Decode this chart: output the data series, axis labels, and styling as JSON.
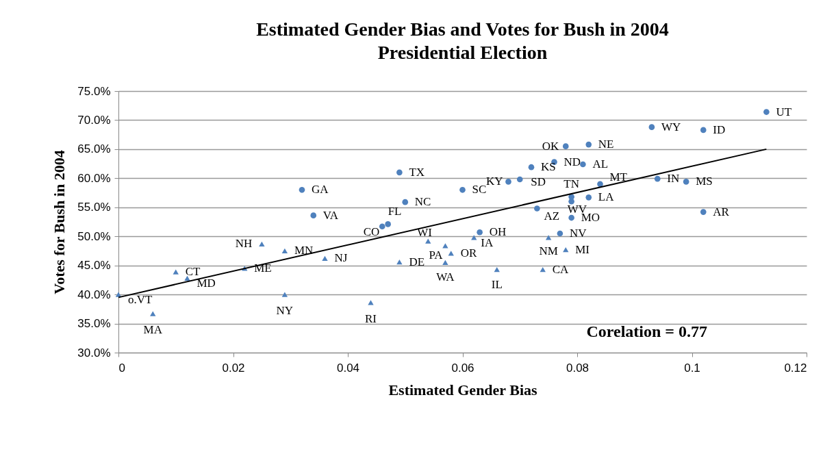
{
  "chart_data": {
    "type": "scatter",
    "title": "Estimated Gender Bias and Votes for Bush in 2004 Presidential Election",
    "xlabel": "Estimated Gender Bias",
    "ylabel": "Votes for Bush in 2004",
    "xlim": [
      0,
      0.12
    ],
    "xticks": [
      0,
      0.02,
      0.04,
      0.06,
      0.08,
      0.1,
      0.12
    ],
    "ylim": [
      30,
      75
    ],
    "yticks": [
      {
        "value": 30,
        "label": "30.0%"
      },
      {
        "value": 35,
        "label": "35.0%"
      },
      {
        "value": 40,
        "label": "40.0%"
      },
      {
        "value": 45,
        "label": "45.0%"
      },
      {
        "value": 50,
        "label": "50.0%"
      },
      {
        "value": 55,
        "label": "55.0%"
      },
      {
        "value": 60,
        "label": "60.0%"
      },
      {
        "value": 65,
        "label": "65.0%"
      },
      {
        "value": 70,
        "label": "70.0%"
      },
      {
        "value": 75,
        "label": "75.0%"
      }
    ],
    "grid": "y",
    "series": [
      {
        "type": "scatter",
        "marker": "circle",
        "color": "#4f81bd",
        "x": [
          0.113,
          0.093,
          0.102,
          0.082,
          0.094,
          0.099,
          0.102,
          0.084,
          0.082,
          0.078,
          0.076,
          0.081,
          0.072,
          0.068,
          0.07,
          0.049,
          0.06,
          0.05,
          0.079,
          0.079,
          0.073,
          0.079,
          0.047,
          0.046,
          0.063,
          0.077,
          0.032,
          0.034
        ],
        "values": [
          71.4,
          68.8,
          68.3,
          65.8,
          59.9,
          59.4,
          54.2,
          59.0,
          56.7,
          65.5,
          62.8,
          62.4,
          61.9,
          59.4,
          59.8,
          61.0,
          58.0,
          55.9,
          56.8,
          56.0,
          54.8,
          53.2,
          52.1,
          51.7,
          50.7,
          50.5,
          58.0,
          53.6
        ]
      },
      {
        "type": "scatter",
        "marker": "triangle",
        "color": "#4f81bd",
        "x": [
          0.0,
          0.006,
          0.01,
          0.012,
          0.022,
          0.025,
          0.029,
          0.036,
          0.029,
          0.044,
          0.054,
          0.057,
          0.058,
          0.049,
          0.057,
          0.062,
          0.066,
          0.074,
          0.075,
          0.078
        ],
        "values": [
          40.0,
          36.7,
          43.9,
          42.8,
          44.5,
          48.7,
          47.5,
          46.2,
          40.0,
          38.6,
          49.2,
          48.4,
          47.1,
          45.6,
          45.5,
          49.8,
          44.3,
          44.3,
          49.8,
          47.7
        ]
      },
      {
        "type": "line",
        "line_style": "solid",
        "marker": "none",
        "color": "#000000",
        "x": [
          0,
          0.113
        ],
        "values": [
          39.5,
          65.0
        ]
      }
    ],
    "annotations": [
      {
        "text": "UT",
        "x": 0.113,
        "y": 71.4
      },
      {
        "text": "WY",
        "x": 0.093,
        "y": 68.8
      },
      {
        "text": "ID",
        "x": 0.102,
        "y": 68.3
      },
      {
        "text": "NE",
        "x": 0.082,
        "y": 65.8
      },
      {
        "text": "IN",
        "x": 0.094,
        "y": 59.9
      },
      {
        "text": "MS",
        "x": 0.099,
        "y": 59.4
      },
      {
        "text": "AR",
        "x": 0.102,
        "y": 54.2
      },
      {
        "text": "MT",
        "x": 0.084,
        "y": 59.0
      },
      {
        "text": "LA",
        "x": 0.082,
        "y": 56.7
      },
      {
        "text": "OK",
        "x": 0.078,
        "y": 65.5
      },
      {
        "text": "ND",
        "x": 0.076,
        "y": 62.8
      },
      {
        "text": "AL",
        "x": 0.081,
        "y": 62.4
      },
      {
        "text": "KS",
        "x": 0.072,
        "y": 61.9
      },
      {
        "text": "KY",
        "x": 0.068,
        "y": 59.4
      },
      {
        "text": "SD",
        "x": 0.07,
        "y": 59.8
      },
      {
        "text": "TX",
        "x": 0.049,
        "y": 61.0
      },
      {
        "text": "SC",
        "x": 0.06,
        "y": 58.0
      },
      {
        "text": "NC",
        "x": 0.05,
        "y": 55.9
      },
      {
        "text": "TN",
        "x": 0.079,
        "y": 56.8
      },
      {
        "text": "WV",
        "x": 0.079,
        "y": 56.0
      },
      {
        "text": "AZ",
        "x": 0.073,
        "y": 54.8
      },
      {
        "text": "MO",
        "x": 0.079,
        "y": 53.2
      },
      {
        "text": "FL",
        "x": 0.047,
        "y": 52.1
      },
      {
        "text": "CO",
        "x": 0.046,
        "y": 51.7
      },
      {
        "text": "OH",
        "x": 0.063,
        "y": 50.7
      },
      {
        "text": "NV",
        "x": 0.077,
        "y": 50.5
      },
      {
        "text": "GA",
        "x": 0.032,
        "y": 58.0
      },
      {
        "text": "VA",
        "x": 0.034,
        "y": 53.6
      },
      {
        "text": "o.VT",
        "x": 0.0,
        "y": 40.0
      },
      {
        "text": "MA",
        "x": 0.006,
        "y": 36.7
      },
      {
        "text": "CT",
        "x": 0.01,
        "y": 43.9
      },
      {
        "text": "MD",
        "x": 0.012,
        "y": 42.8
      },
      {
        "text": "ME",
        "x": 0.022,
        "y": 44.5
      },
      {
        "text": "NH",
        "x": 0.025,
        "y": 48.7
      },
      {
        "text": "MN",
        "x": 0.029,
        "y": 47.5
      },
      {
        "text": "NJ",
        "x": 0.036,
        "y": 46.2
      },
      {
        "text": "NY",
        "x": 0.029,
        "y": 40.0
      },
      {
        "text": "RI",
        "x": 0.044,
        "y": 38.6
      },
      {
        "text": "WI",
        "x": 0.054,
        "y": 49.2
      },
      {
        "text": "PA",
        "x": 0.057,
        "y": 48.4
      },
      {
        "text": "OR",
        "x": 0.058,
        "y": 47.1
      },
      {
        "text": "DE",
        "x": 0.049,
        "y": 45.6
      },
      {
        "text": "WA",
        "x": 0.057,
        "y": 45.5
      },
      {
        "text": "IA",
        "x": 0.062,
        "y": 49.8
      },
      {
        "text": "IL",
        "x": 0.066,
        "y": 44.3
      },
      {
        "text": "CA",
        "x": 0.074,
        "y": 44.3
      },
      {
        "text": "NM",
        "x": 0.075,
        "y": 49.8
      },
      {
        "text": "MI",
        "x": 0.078,
        "y": 47.7
      },
      "Corelation = 0.77"
    ]
  }
}
